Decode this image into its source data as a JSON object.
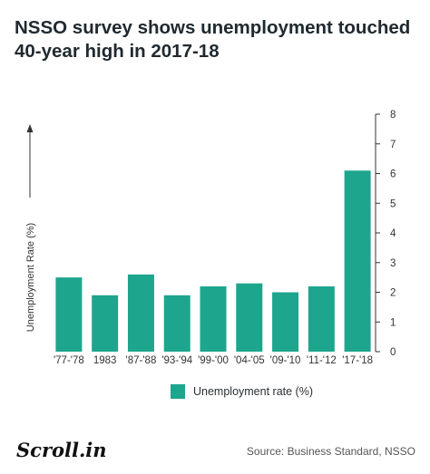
{
  "title": "NSSO survey shows unemployment touched 40-year high in 2017-18",
  "legend_label": "Unemployment rate (%)",
  "logo_text": "Scroll.in",
  "source_text": "Source: Business Standard, NSSO",
  "colors": {
    "bar": "#1ea58d",
    "axis": "#333333",
    "text": "#333333"
  },
  "chart_data": {
    "type": "bar",
    "title": "NSSO survey shows unemployment touched 40-year high in 2017-18",
    "categories": [
      "'77-'78",
      "1983",
      "'87-'88",
      "'93-'94",
      "'99-'00",
      "'04-'05",
      "'09-'10",
      "'11-'12",
      "'17-'18"
    ],
    "series": [
      {
        "name": "Unemployment rate (%)",
        "values": [
          2.5,
          1.9,
          2.6,
          1.9,
          2.2,
          2.3,
          2.0,
          2.2,
          6.1
        ]
      }
    ],
    "ylabel": "Unemployment Rate (%)",
    "xlabel": "",
    "ylim": [
      0,
      8
    ],
    "yticks": [
      0,
      1,
      2,
      3,
      4,
      5,
      6,
      7,
      8
    ],
    "y_axis_side": "right",
    "grid": false,
    "legend_position": "bottom"
  }
}
